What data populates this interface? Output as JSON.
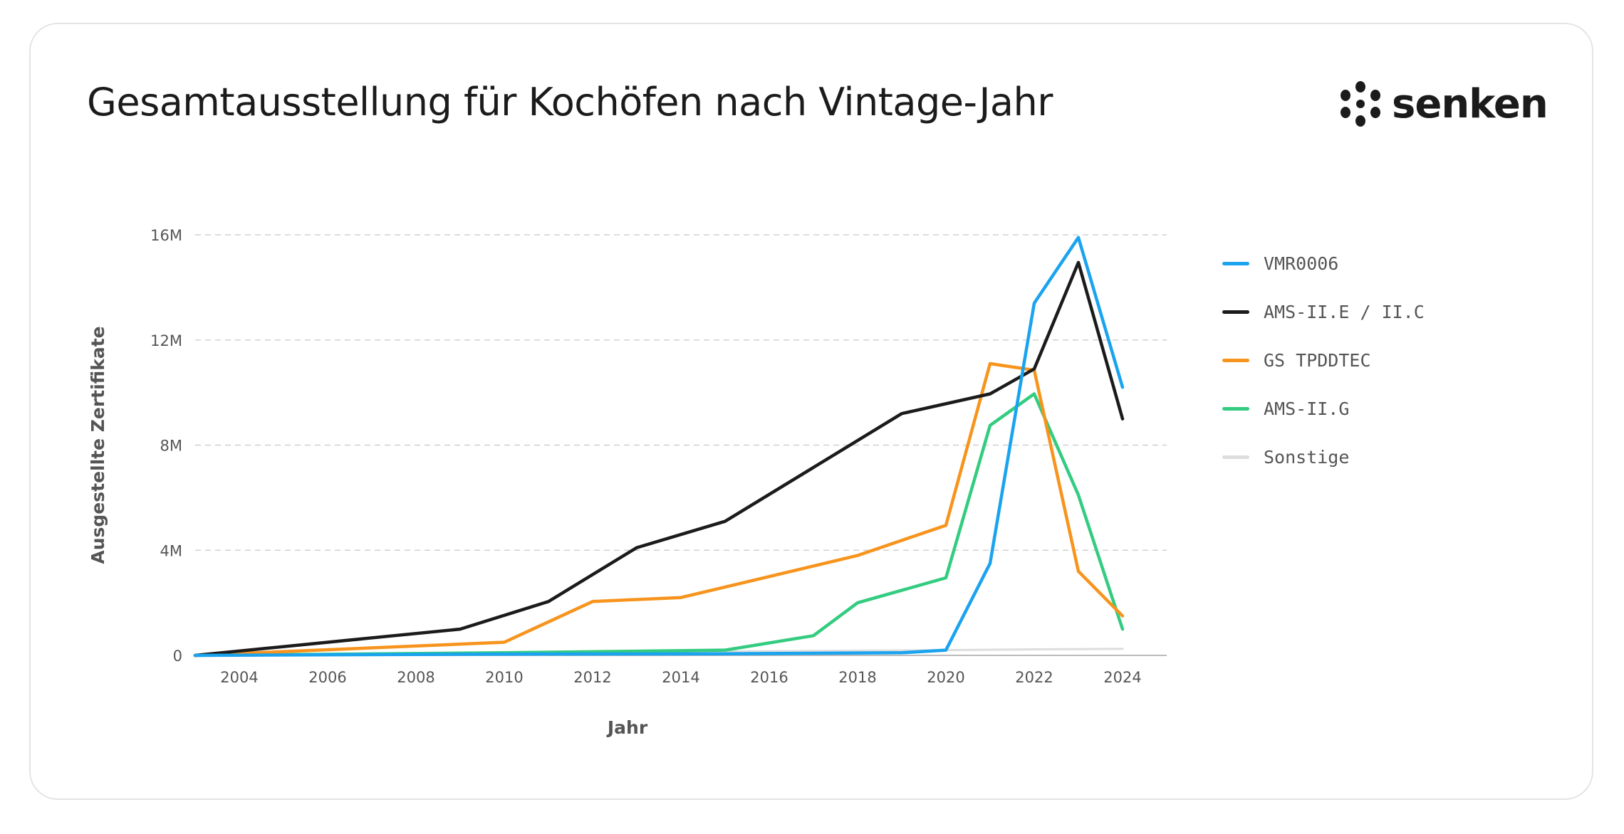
{
  "header": {
    "title": "Gesamtausstellung für Kochöfen nach Vintage-Jahr",
    "brand": "senken"
  },
  "chart_data": {
    "type": "line",
    "title": "Gesamtausstellung für Kochöfen nach Vintage-Jahr",
    "xlabel": "Jahr",
    "ylabel": "Ausgestellte Zertifikate",
    "xlim": [
      2003,
      2025
    ],
    "ylim": [
      0,
      16000000
    ],
    "x_ticks": [
      2004,
      2006,
      2008,
      2010,
      2012,
      2014,
      2016,
      2018,
      2020,
      2022,
      2024
    ],
    "x_tick_labels": [
      "2004",
      "2006",
      "2008",
      "2010",
      "2012",
      "2014",
      "2016",
      "2018",
      "2020",
      "2022",
      "2024"
    ],
    "y_ticks": [
      0,
      4000000,
      8000000,
      12000000,
      16000000
    ],
    "y_tick_labels": [
      "0",
      "4M",
      "8M",
      "12M",
      "16M"
    ],
    "grid": "horizontal-dashed",
    "legend_position": "right",
    "series": [
      {
        "name": "Sonstige",
        "color": "#dddddd",
        "points": [
          [
            2003,
            0
          ],
          [
            2009,
            100000
          ],
          [
            2015,
            150000
          ],
          [
            2020,
            200000
          ],
          [
            2022,
            230000
          ],
          [
            2024,
            250000
          ]
        ]
      },
      {
        "name": "AMS-II.G",
        "color": "#33cc80",
        "points": [
          [
            2003,
            0
          ],
          [
            2010,
            100000
          ],
          [
            2015,
            200000
          ],
          [
            2017,
            750000
          ],
          [
            2018,
            2000000
          ],
          [
            2020,
            2950000
          ],
          [
            2021,
            8750000
          ],
          [
            2022,
            9950000
          ],
          [
            2023,
            6100000
          ],
          [
            2024,
            1000000
          ]
        ]
      },
      {
        "name": "GS TPDDTEC",
        "color": "#f7941d",
        "points": [
          [
            2003,
            0
          ],
          [
            2010,
            500000
          ],
          [
            2012,
            2050000
          ],
          [
            2014,
            2200000
          ],
          [
            2018,
            3800000
          ],
          [
            2020,
            4950000
          ],
          [
            2021,
            11100000
          ],
          [
            2022,
            10850000
          ],
          [
            2023,
            3200000
          ],
          [
            2024,
            1500000
          ]
        ]
      },
      {
        "name": "AMS-II.E / II.C",
        "color": "#1b1b1b",
        "points": [
          [
            2003,
            0
          ],
          [
            2009,
            1000000
          ],
          [
            2011,
            2050000
          ],
          [
            2013,
            4100000
          ],
          [
            2015,
            5100000
          ],
          [
            2019,
            9200000
          ],
          [
            2021,
            9950000
          ],
          [
            2022,
            10900000
          ],
          [
            2023,
            14950000
          ],
          [
            2024,
            9000000
          ]
        ]
      },
      {
        "name": "VMR0006",
        "color": "#1aa3ee",
        "points": [
          [
            2003,
            0
          ],
          [
            2010,
            50000
          ],
          [
            2015,
            60000
          ],
          [
            2019,
            100000
          ],
          [
            2020,
            200000
          ],
          [
            2021,
            3500000
          ],
          [
            2022,
            13400000
          ],
          [
            2023,
            15900000
          ],
          [
            2024,
            10200000
          ]
        ]
      }
    ],
    "legend_order": [
      "VMR0006",
      "AMS-II.E / II.C",
      "GS TPDDTEC",
      "AMS-II.G",
      "Sonstige"
    ]
  }
}
